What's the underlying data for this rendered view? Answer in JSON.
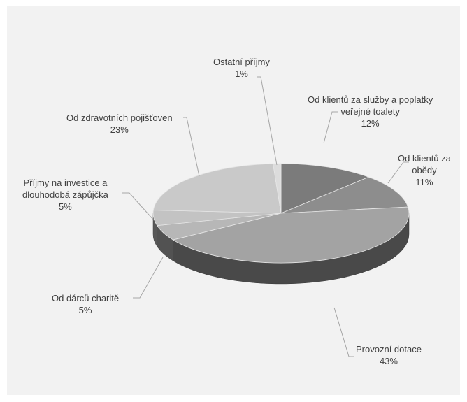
{
  "chart_data": {
    "type": "pie",
    "title": "",
    "style": "3d",
    "slices": [
      {
        "label": "Od klientů za služby a poplatky veřejné toalety",
        "value": 12,
        "pct": "12%",
        "color": "#7b7b7b"
      },
      {
        "label": "Od klientů za obědy",
        "value": 11,
        "pct": "11%",
        "color": "#8d8d8d"
      },
      {
        "label": "Provozní dotace",
        "value": 43,
        "pct": "43%",
        "color": "#a3a3a3"
      },
      {
        "label": "Od dárců charitě",
        "value": 5,
        "pct": "5%",
        "color": "#b7b7b7"
      },
      {
        "label": "Příjmy na investice a dlouhodobá zápůjčka",
        "value": 5,
        "pct": "5%",
        "color": "#c3c3c3"
      },
      {
        "label": "Od zdravotních pojišťoven",
        "value": 23,
        "pct": "23%",
        "color": "#c9c9c9"
      },
      {
        "label": "Ostatní příjmy",
        "value": 1,
        "pct": "1%",
        "color": "#dcdcdc"
      }
    ]
  }
}
